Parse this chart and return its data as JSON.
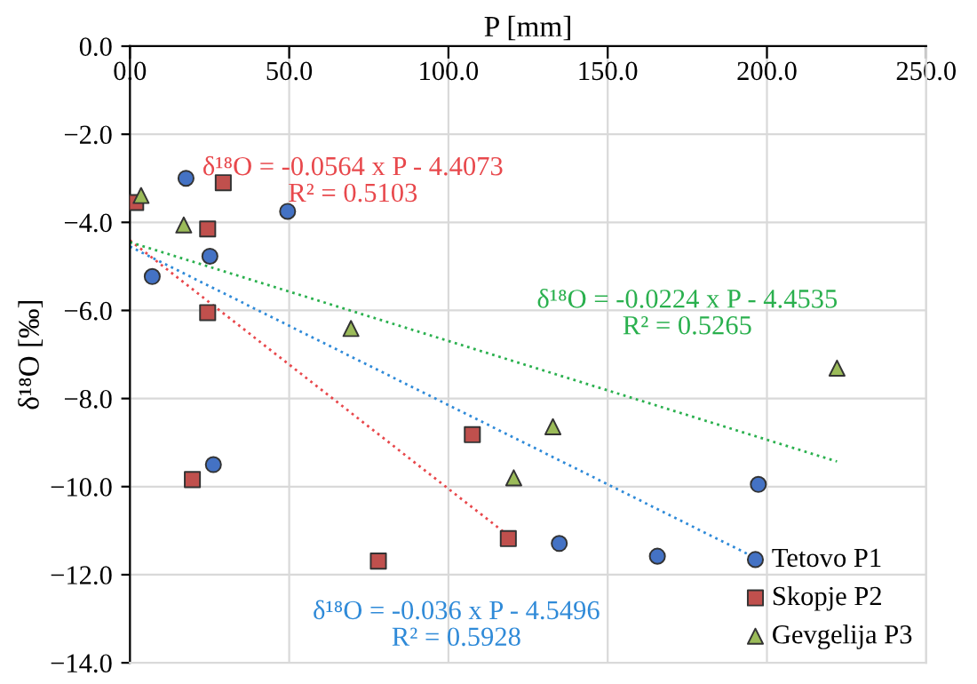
{
  "chart_data": {
    "type": "scatter",
    "xlabel": "P [mm]",
    "ylabel": "δ¹⁸O [‰]",
    "xlim": [
      0,
      250
    ],
    "xticks": [
      {
        "value": 0,
        "label": "0.0"
      },
      {
        "value": 50,
        "label": "50.0"
      },
      {
        "value": 100,
        "label": "100.0"
      },
      {
        "value": 150,
        "label": "150.0"
      },
      {
        "value": 200,
        "label": "200.0"
      },
      {
        "value": 250,
        "label": "250.0"
      }
    ],
    "ylim": [
      -14,
      0
    ],
    "yticks": [
      {
        "value": 0,
        "label": "0.0"
      },
      {
        "value": -2,
        "label": "−2.0"
      },
      {
        "value": -4,
        "label": "−4.0"
      },
      {
        "value": -6,
        "label": "−6.0"
      },
      {
        "value": -8,
        "label": "−8.0"
      },
      {
        "value": -10,
        "label": "−10.0"
      },
      {
        "value": -12,
        "label": "−12.0"
      },
      {
        "value": -14,
        "label": "−14.0"
      }
    ],
    "grid": true,
    "legend": "bottom right",
    "series": [
      {
        "name": "Tetovo P1",
        "marker": "circle",
        "color": "#4472c4",
        "x": [
          17.6,
          49.5,
          25.1,
          7.0,
          26.2,
          134.8,
          165.6,
          197.3
        ],
        "values": [
          -3.0,
          -3.75,
          -4.77,
          -5.23,
          -9.5,
          -11.29,
          -11.58,
          -9.95
        ]
      },
      {
        "name": "Skopje P2",
        "marker": "square",
        "color": "#c0504d",
        "x": [
          1.8,
          29.3,
          24.4,
          24.4,
          19.6,
          78.0,
          107.5,
          118.8
        ],
        "values": [
          -3.55,
          -3.1,
          -4.15,
          -6.05,
          -9.84,
          -11.69,
          -8.82,
          -11.18
        ]
      },
      {
        "name": "Gevgelija P3",
        "marker": "triangle",
        "color": "#9bbb59",
        "x": [
          3.5,
          16.9,
          69.4,
          132.8,
          120.5,
          222.0
        ],
        "values": [
          -3.39,
          -4.06,
          -6.41,
          -8.64,
          -9.8,
          -7.31
        ]
      },
      {
        "type": "line",
        "line_style": "dotted",
        "color": "#e8484c",
        "x": [
          0,
          118.8
        ],
        "values": [
          -4.41,
          -11.11
        ]
      },
      {
        "type": "line",
        "line_style": "dotted",
        "color": "#2ab04e",
        "x": [
          0,
          222.0
        ],
        "values": [
          -4.45,
          -9.43
        ]
      },
      {
        "type": "line",
        "line_style": "dotted",
        "color": "#2f8ad8",
        "x": [
          0,
          197.3
        ],
        "values": [
          -4.55,
          -11.65
        ]
      }
    ],
    "annotations": [
      "δ¹⁸O = -0.0564 x P - 4.4073\nR² = 0.5103",
      "δ¹⁸O = -0.0224 x P - 4.4535\nR² = 0.5265",
      "δ¹⁸O = -0.036 x P - 4.5496\nR² = 0.5928"
    ]
  }
}
